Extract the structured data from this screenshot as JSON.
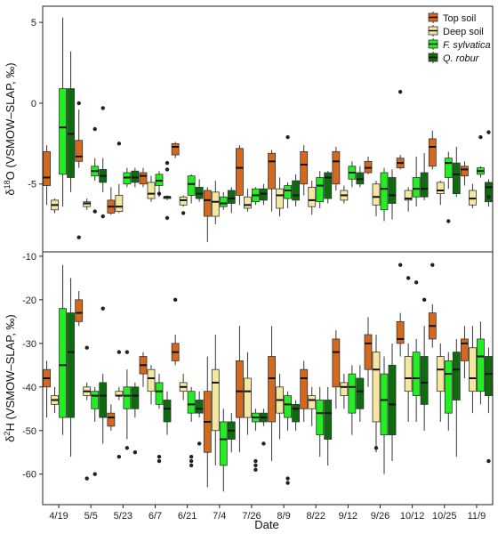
{
  "chart_data": {
    "type": "boxplot",
    "legend": {
      "position": "top-right",
      "entries": [
        {
          "name": "Top soil",
          "italic": false,
          "color": "#D2691E"
        },
        {
          "name": "Deep soil",
          "italic": false,
          "color": "#F5E6A0"
        },
        {
          "name": "F. sylvatica",
          "italic": true,
          "color": "#22EE22"
        },
        {
          "name": "Q. robur",
          "italic": true,
          "color": "#0E6B0E"
        }
      ]
    },
    "xlabel": "Date",
    "dates": [
      "4/19",
      "5/5",
      "5/23",
      "6/7",
      "6/21",
      "7/4",
      "7/26",
      "8/9",
      "8/22",
      "9/12",
      "9/26",
      "10/12",
      "10/25",
      "11/9"
    ],
    "panels": [
      {
        "id": "d18O",
        "ylabel_prefix": "δ",
        "ylabel_sup": "18",
        "ylabel_rest": "O (VSMOW–SLAP, ‰)",
        "ylim": [
          -9.2,
          6
        ],
        "yticks": [
          -5,
          0,
          5
        ],
        "boxes": [
          [
            [
              -6.3,
              -5.1,
              -4.6,
              -3.0,
              -2.6,
              []
            ],
            [
              -6.8,
              -6.6,
              -6.3,
              -6.0,
              -5.9,
              []
            ],
            [
              -6.4,
              -4.4,
              -1.5,
              0.9,
              5.3,
              []
            ],
            [
              -5.5,
              -4.6,
              -1.9,
              0.9,
              3.2,
              []
            ]
          ],
          [
            [
              -4.0,
              -3.6,
              -3.3,
              -2.3,
              -0.4,
              [
                -8.3,
                0.0
              ]
            ],
            [
              -6.6,
              -6.4,
              -6.2,
              -6.1,
              -5.9,
              []
            ],
            [
              -4.8,
              -4.5,
              -4.2,
              -3.9,
              -3.4,
              [
                -6.7,
                -1.6
              ]
            ],
            [
              -5.5,
              -4.9,
              -4.5,
              -4.1,
              -3.4,
              [
                -0.3,
                -7.0
              ]
            ]
          ],
          [
            [
              -6.9,
              -6.8,
              -6.4,
              -6.0,
              -5.2,
              []
            ],
            [
              -6.8,
              -6.7,
              -6.4,
              -5.7,
              -5.0,
              [
                -2.5
              ]
            ],
            [
              -5.2,
              -5.0,
              -4.6,
              -4.3,
              -4.0,
              []
            ],
            [
              -5.2,
              -4.9,
              -4.6,
              -4.2,
              -4.0,
              []
            ]
          ],
          [
            [
              -5.2,
              -5.0,
              -4.5,
              -4.3,
              -4.0,
              []
            ],
            [
              -6.1,
              -5.9,
              -5.6,
              -4.9,
              -4.5,
              []
            ],
            [
              -5.8,
              -5.1,
              -4.8,
              -4.4,
              -4.2,
              [
                -5.6
              ]
            ],
            [
              -6.0,
              -5.9,
              -5.8,
              -5.8,
              -5.7,
              [
                -3.7,
                -4.1,
                -7.1
              ]
            ]
          ],
          [
            [
              -3.4,
              -3.2,
              -2.7,
              -2.5,
              -2.4,
              []
            ],
            [
              -6.4,
              -6.3,
              -6.0,
              -5.8,
              -5.7,
              [
                -6.8
              ]
            ],
            [
              -6.2,
              -5.7,
              -5.0,
              -4.5,
              -4.4,
              []
            ],
            [
              -6.1,
              -5.9,
              -5.6,
              -5.2,
              -4.7,
              []
            ]
          ],
          [
            [
              -8.6,
              -7.0,
              -6.0,
              -5.4,
              -5.2,
              []
            ],
            [
              -7.5,
              -7.0,
              -6.1,
              -5.5,
              -4.8,
              []
            ],
            [
              -6.6,
              -6.4,
              -6.2,
              -5.8,
              -5.5,
              []
            ],
            [
              -6.8,
              -6.2,
              -5.9,
              -5.4,
              -5.2,
              []
            ]
          ],
          [
            [
              -6.3,
              -5.7,
              -4.0,
              -2.8,
              -2.6,
              []
            ],
            [
              -6.7,
              -6.5,
              -6.3,
              -5.8,
              -5.3,
              []
            ],
            [
              -6.3,
              -6.1,
              -5.7,
              -5.3,
              -5.2,
              []
            ],
            [
              -6.3,
              -6.0,
              -5.6,
              -5.3,
              -5.0,
              []
            ]
          ],
          [
            [
              -6.7,
              -5.3,
              -3.6,
              -3.1,
              -2.9,
              []
            ],
            [
              -7.0,
              -6.5,
              -5.7,
              -5.3,
              -4.6,
              []
            ],
            [
              -6.5,
              -5.9,
              -5.4,
              -5.1,
              -4.9,
              [
                -2.1
              ]
            ],
            [
              -6.4,
              -6.0,
              -5.7,
              -4.8,
              -4.4,
              []
            ]
          ],
          [
            [
              -5.7,
              -5.0,
              -3.8,
              -3.0,
              -2.6,
              []
            ],
            [
              -6.9,
              -6.4,
              -6.0,
              -5.2,
              -4.8,
              []
            ],
            [
              -6.5,
              -6.1,
              -5.1,
              -4.6,
              -4.2,
              []
            ],
            [
              -6.2,
              -5.9,
              -4.6,
              -4.3,
              -4.2,
              []
            ]
          ],
          [
            [
              -5.4,
              -5.0,
              -3.6,
              -3.0,
              -2.7,
              []
            ],
            [
              -6.2,
              -6.0,
              -5.7,
              -5.4,
              -5.1,
              []
            ],
            [
              -5.2,
              -4.7,
              -4.3,
              -3.9,
              -3.6,
              []
            ],
            [
              -5.2,
              -5.0,
              -4.7,
              -4.3,
              -3.9,
              []
            ]
          ],
          [
            [
              -4.4,
              -4.3,
              -4.0,
              -3.6,
              -3.3,
              []
            ],
            [
              -7.0,
              -6.3,
              -5.8,
              -5.0,
              -4.8,
              []
            ],
            [
              -7.3,
              -6.6,
              -5.3,
              -4.3,
              -4.0,
              []
            ],
            [
              -7.2,
              -6.2,
              -5.7,
              -4.6,
              -4.1,
              []
            ]
          ],
          [
            [
              -4.1,
              -4.0,
              -3.7,
              -3.4,
              -3.2,
              [
                0.7
              ]
            ],
            [
              -6.7,
              -6.0,
              -5.9,
              -5.4,
              -5.2,
              []
            ],
            [
              -6.4,
              -5.8,
              -5.3,
              -4.6,
              -3.3,
              []
            ],
            [
              -6.0,
              -5.8,
              -5.3,
              -4.3,
              -3.1,
              []
            ]
          ],
          [
            [
              -4.1,
              -3.9,
              -2.7,
              -2.2,
              -1.7,
              []
            ],
            [
              -6.3,
              -5.6,
              -5.4,
              -4.9,
              -4.8,
              []
            ],
            [
              -5.3,
              -4.6,
              -3.7,
              -3.4,
              -3.0,
              [
                -7.3
              ]
            ],
            [
              -5.8,
              -5.6,
              -4.4,
              -3.7,
              -2.7,
              []
            ]
          ],
          [
            [
              -5.1,
              -4.5,
              -4.1,
              -3.9,
              -3.6,
              []
            ],
            [
              -6.5,
              -6.3,
              -5.9,
              -5.4,
              -5.0,
              []
            ],
            [
              -4.6,
              -4.4,
              -4.2,
              -4.0,
              -3.9,
              [
                -2.1
              ]
            ],
            [
              -6.4,
              -6.1,
              -5.2,
              -4.9,
              -4.7,
              [
                -1.8,
                -5.8
              ]
            ]
          ]
        ]
      },
      {
        "id": "d2H",
        "ylabel_prefix": "δ",
        "ylabel_sup": "2",
        "ylabel_rest": "H (VSMOW–SLAP, ‰)",
        "ylim": [
          -67,
          -9
        ],
        "yticks": [
          -60,
          -50,
          -40,
          -30,
          -20,
          -10
        ],
        "boxes": [
          [
            [
              -47,
              -40,
              -38,
              -36,
              -34,
              []
            ],
            [
              -46,
              -44,
              -43,
              -42,
              -40,
              []
            ],
            [
              -51,
              -47,
              -35,
              -22,
              -12,
              []
            ],
            [
              -56,
              -47,
              -32,
              -23,
              -15,
              []
            ]
          ],
          [
            [
              -26,
              -25,
              -23,
              -20,
              -18,
              []
            ],
            [
              -43,
              -42,
              -41,
              -40,
              -39,
              [
                -61,
                -31
              ]
            ],
            [
              -48,
              -45,
              -42,
              -41,
              -40,
              [
                -60
              ]
            ],
            [
              -53,
              -47,
              -42,
              -39,
              -37,
              [
                -22
              ]
            ]
          ],
          [
            [
              -50,
              -49,
              -47,
              -46,
              -44,
              []
            ],
            [
              -43,
              -42,
              -42,
              -41,
              -40,
              [
                -32,
                -56
              ]
            ],
            [
              -52,
              -45,
              -42,
              -40,
              -36,
              [
                -54,
                -32
              ]
            ],
            [
              -47,
              -45,
              -42,
              -40,
              -39,
              [
                -55
              ]
            ]
          ],
          [
            [
              -40,
              -37,
              -35,
              -33,
              -32,
              []
            ],
            [
              -44,
              -41,
              -38,
              -36,
              -35,
              []
            ],
            [
              -45,
              -44,
              -41,
              -39,
              -37,
              [
                -56,
                -57
              ]
            ],
            [
              -51,
              -48,
              -45,
              -43,
              -41,
              []
            ]
          ],
          [
            [
              -35,
              -34,
              -32,
              -30,
              -28,
              [
                -20
              ]
            ],
            [
              -43,
              -41,
              -40,
              -39,
              -37,
              []
            ],
            [
              -48,
              -46,
              -44,
              -41,
              -40,
              [
                -56,
                -57,
                -58
              ]
            ],
            [
              -47,
              -46,
              -45,
              -43,
              -41,
              [
                -53
              ]
            ]
          ],
          [
            [
              -63,
              -55,
              -48,
              -41,
              -33,
              []
            ],
            [
              -58,
              -50,
              -39,
              -36,
              -28,
              []
            ],
            [
              -64,
              -58,
              -52,
              -48,
              -45,
              []
            ],
            [
              -55,
              -52,
              -50,
              -48,
              -46,
              []
            ]
          ],
          [
            [
              -55,
              -47,
              -41,
              -34,
              -26,
              []
            ],
            [
              -51,
              -47,
              -41,
              -38,
              -32,
              []
            ],
            [
              -50,
              -48,
              -47,
              -46,
              -45,
              [
                -57,
                -58,
                -59
              ]
            ],
            [
              -49,
              -48,
              -47,
              -46,
              -45,
              [
                -53
              ]
            ]
          ],
          [
            [
              -57,
              -48,
              -38,
              -33,
              -26,
              []
            ],
            [
              -52,
              -46,
              -43,
              -40,
              -37,
              []
            ],
            [
              -50,
              -47,
              -44,
              -42,
              -41,
              [
                -61,
                -62
              ]
            ],
            [
              -50,
              -48,
              -45,
              -44,
              -43,
              []
            ]
          ],
          [
            [
              -48,
              -45,
              -38,
              -36,
              -34,
              []
            ],
            [
              -49,
              -45,
              -43,
              -42,
              -40,
              []
            ],
            [
              -56,
              -51,
              -46,
              -43,
              -40,
              []
            ],
            [
              -58,
              -52,
              -46,
              -43,
              -40,
              []
            ]
          ],
          [
            [
              -45,
              -40,
              -32,
              -29,
              -27,
              []
            ],
            [
              -45,
              -42,
              -40,
              -39,
              -37,
              []
            ],
            [
              -51,
              -46,
              -40,
              -37,
              -35,
              []
            ],
            [
              -48,
              -45,
              -41,
              -38,
              -35,
              []
            ]
          ],
          [
            [
              -40,
              -36,
              -30,
              -28,
              -24,
              []
            ],
            [
              -55,
              -48,
              -36,
              -32,
              -28,
              [
                -54
              ]
            ],
            [
              -60,
              -51,
              -43,
              -37,
              -33,
              []
            ],
            [
              -57,
              -51,
              -44,
              -35,
              -30,
              []
            ]
          ],
          [
            [
              -33,
              -30,
              -29,
              -25,
              -23,
              [
                -12
              ]
            ],
            [
              -48,
              -41,
              -38,
              -33,
              -30,
              [
                -15
              ]
            ],
            [
              -48,
              -42,
              -38,
              -32,
              -29,
              [
                -16
              ]
            ],
            [
              -50,
              -44,
              -39,
              -33,
              -26,
              [
                -20
              ]
            ]
          ],
          [
            [
              -31,
              -29,
              -26,
              -23,
              -21,
              [
                -12
              ]
            ],
            [
              -48,
              -41,
              -36,
              -33,
              -30,
              []
            ],
            [
              -50,
              -46,
              -37,
              -34,
              -32,
              []
            ],
            [
              -56,
              -43,
              -36,
              -32,
              -29,
              []
            ]
          ],
          [
            [
              -38,
              -34,
              -30,
              -29,
              -26,
              []
            ],
            [
              -46,
              -41,
              -38,
              -31,
              -26,
              []
            ],
            [
              -44,
              -41,
              -33,
              -29,
              -25,
              []
            ],
            [
              -46,
              -42,
              -37,
              -33,
              -31,
              [
                -57
              ]
            ]
          ]
        ]
      }
    ]
  }
}
